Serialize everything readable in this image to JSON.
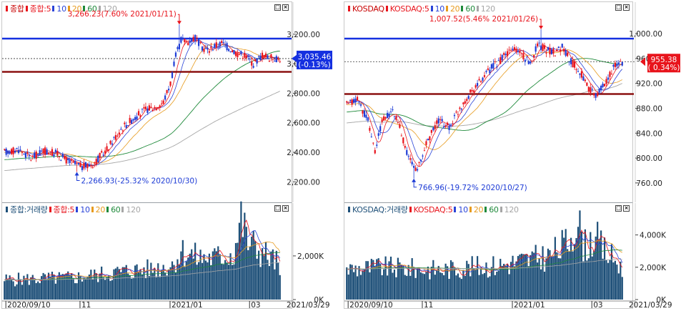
{
  "colors": {
    "up": "#e8141c",
    "down": "#1e3cd6",
    "ma5": "#e8141c",
    "ma10": "#2a44d8",
    "ma20": "#e79b1e",
    "ma60": "#1f8a3b",
    "ma120": "#a6a6a6",
    "resistance": "#1530e0",
    "support": "#8b1010",
    "volume": "#1d4f78",
    "current_marker": "#e8141c"
  },
  "icons": [
    "minimize-icon",
    "close-icon"
  ],
  "charts": [
    {
      "id": "kospi",
      "legend_price": [
        {
          "label": "종합",
          "color": "#e8141c"
        },
        {
          "label": "종합:5",
          "color": "#e8141c"
        },
        {
          "label": "10",
          "color": "#2a44d8"
        },
        {
          "label": "20",
          "color": "#e79b1e"
        },
        {
          "label": "60",
          "color": "#1f8a3b"
        },
        {
          "label": "120",
          "color": "#a6a6a6"
        }
      ],
      "legend_volume": [
        {
          "label": "종합:거래량",
          "color": "#1d4f78"
        },
        {
          "label": "종합:5",
          "color": "#e8141c"
        },
        {
          "label": "10",
          "color": "#2a44d8"
        },
        {
          "label": "20",
          "color": "#e79b1e"
        },
        {
          "label": "60",
          "color": "#1f8a3b"
        },
        {
          "label": "120",
          "color": "#a6a6a6"
        }
      ],
      "high_label": "3,266.23(7.60% 2021/01/11)",
      "low_label": "2,266.93(-25.32% 2020/10/30)",
      "current_value": "3,035.46",
      "current_change": "(-0.13%)",
      "y_ticks": [
        "3,200.00",
        "3,000.00",
        "2,800.00",
        "2,600.00",
        "2,400.00",
        "2,200.00"
      ],
      "y_tick_values": [
        3200,
        3000,
        2800,
        2600,
        2400,
        2200
      ],
      "ylim": [
        2100,
        3330
      ],
      "volume_ticks": [
        "2,000K",
        "0K"
      ],
      "volume_tick_values": [
        2000,
        0
      ],
      "volume_ylim": [
        0,
        3700
      ],
      "x_labels": [
        "2020/09/10",
        "11",
        "2021/01",
        "03",
        "2021/03/29"
      ],
      "x_label_index": [
        2,
        44,
        95,
        140,
        160
      ],
      "resistance_level": 3170,
      "support_level": 2945,
      "current_level": 3035,
      "anchors": [
        [
          0,
          2400
        ],
        [
          8,
          2420
        ],
        [
          15,
          2360
        ],
        [
          22,
          2410
        ],
        [
          30,
          2390
        ],
        [
          36,
          2340
        ],
        [
          44,
          2300
        ],
        [
          50,
          2320
        ],
        [
          58,
          2420
        ],
        [
          66,
          2560
        ],
        [
          72,
          2620
        ],
        [
          80,
          2690
        ],
        [
          86,
          2710
        ],
        [
          90,
          2740
        ],
        [
          94,
          2870
        ],
        [
          97,
          3050
        ],
        [
          100,
          3160
        ],
        [
          104,
          3150
        ],
        [
          108,
          3180
        ],
        [
          111,
          3120
        ],
        [
          115,
          3090
        ],
        [
          119,
          3120
        ],
        [
          123,
          3140
        ],
        [
          128,
          3100
        ],
        [
          132,
          3070
        ],
        [
          136,
          3060
        ],
        [
          141,
          3000
        ],
        [
          146,
          3060
        ],
        [
          150,
          3040
        ],
        [
          156,
          3035
        ]
      ],
      "bar_count": 157,
      "high_index": 99,
      "high_value": 3266,
      "low_index": 41,
      "low_value": 2267,
      "vol_anchors": [
        [
          0,
          900
        ],
        [
          20,
          950
        ],
        [
          40,
          1000
        ],
        [
          55,
          1150
        ],
        [
          70,
          1300
        ],
        [
          85,
          1400
        ],
        [
          95,
          1600
        ],
        [
          100,
          2200
        ],
        [
          110,
          1900
        ],
        [
          120,
          1900
        ],
        [
          130,
          2100
        ],
        [
          134,
          3700
        ],
        [
          138,
          2600
        ],
        [
          145,
          2200
        ],
        [
          156,
          1600
        ]
      ]
    },
    {
      "id": "kosdaq",
      "legend_price": [
        {
          "label": "KOSDAQ",
          "color": "#e8141c"
        },
        {
          "label": "KOSDAQ:5",
          "color": "#e8141c"
        },
        {
          "label": "10",
          "color": "#2a44d8"
        },
        {
          "label": "20",
          "color": "#e79b1e"
        },
        {
          "label": "60",
          "color": "#1f8a3b"
        },
        {
          "label": "120",
          "color": "#a6a6a6"
        }
      ],
      "legend_volume": [
        {
          "label": "KOSDAQ:거래량",
          "color": "#1d4f78"
        },
        {
          "label": "KOSDAQ:5",
          "color": "#e8141c"
        },
        {
          "label": "10",
          "color": "#2a44d8"
        },
        {
          "label": "20",
          "color": "#e79b1e"
        },
        {
          "label": "60",
          "color": "#1f8a3b"
        },
        {
          "label": "120",
          "color": "#a6a6a6"
        }
      ],
      "high_label": "1,007.52(5.46% 2021/01/26)",
      "low_label": "766.96(-19.72% 2020/10/27)",
      "current_value": "955.38",
      "current_change": "( 0.34%)",
      "y_ticks": [
        "1,000.00",
        "960.00",
        "920.00",
        "880.00",
        "840.00",
        "800.00",
        "760.00"
      ],
      "y_tick_values": [
        1000,
        960,
        920,
        880,
        840,
        800,
        760
      ],
      "ylim": [
        738,
        1030
      ],
      "volume_ticks": [
        "4,000K",
        "2,000K",
        "0K"
      ],
      "volume_tick_values": [
        4000,
        2000,
        0
      ],
      "volume_ylim": [
        0,
        5000
      ],
      "x_labels": [
        "2020/09/10",
        "11",
        "2021/01",
        "03",
        "2021/03/29"
      ],
      "x_label_index": [
        2,
        44,
        95,
        140,
        160
      ],
      "resistance_level": 992,
      "support_level": 903,
      "current_level": 955,
      "anchors": [
        [
          0,
          885
        ],
        [
          6,
          895
        ],
        [
          12,
          860
        ],
        [
          16,
          810
        ],
        [
          20,
          860
        ],
        [
          26,
          875
        ],
        [
          30,
          850
        ],
        [
          35,
          800
        ],
        [
          40,
          780
        ],
        [
          46,
          830
        ],
        [
          52,
          860
        ],
        [
          58,
          850
        ],
        [
          64,
          880
        ],
        [
          70,
          905
        ],
        [
          76,
          925
        ],
        [
          82,
          945
        ],
        [
          88,
          960
        ],
        [
          94,
          975
        ],
        [
          98,
          970
        ],
        [
          104,
          950
        ],
        [
          108,
          985
        ],
        [
          112,
          975
        ],
        [
          118,
          970
        ],
        [
          122,
          980
        ],
        [
          127,
          955
        ],
        [
          132,
          940
        ],
        [
          137,
          910
        ],
        [
          141,
          900
        ],
        [
          146,
          920
        ],
        [
          151,
          945
        ],
        [
          156,
          955
        ]
      ],
      "bar_count": 157,
      "high_index": 110,
      "high_value": 1007,
      "low_index": 38,
      "low_value": 767,
      "vol_anchors": [
        [
          0,
          1900
        ],
        [
          20,
          2000
        ],
        [
          40,
          1900
        ],
        [
          55,
          1850
        ],
        [
          70,
          2000
        ],
        [
          85,
          2100
        ],
        [
          95,
          2300
        ],
        [
          105,
          2500
        ],
        [
          115,
          2700
        ],
        [
          125,
          3500
        ],
        [
          130,
          5000
        ],
        [
          135,
          3300
        ],
        [
          140,
          3900
        ],
        [
          145,
          3100
        ],
        [
          156,
          2000
        ]
      ]
    }
  ]
}
